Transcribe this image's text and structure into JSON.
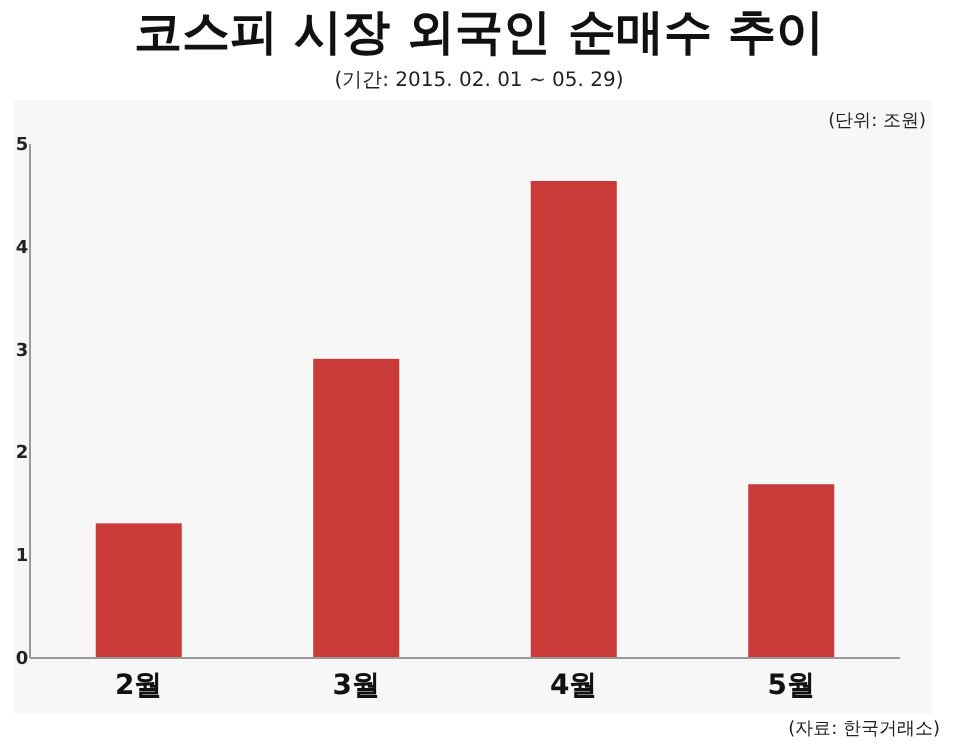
{
  "chart_data": {
    "type": "bar",
    "title": "코스피 시장 외국인 순매수 추이",
    "subtitle": "(기간: 2015. 02. 01 ~ 05. 29)",
    "categories": [
      "2월",
      "3월",
      "4월",
      "5월"
    ],
    "values": [
      1.31,
      2.91,
      4.64,
      1.69
    ],
    "color": "#c93a38",
    "ylim": [
      0,
      5
    ],
    "yticks": [
      0,
      1,
      2,
      3,
      4,
      5
    ],
    "grid": false,
    "annotations": [
      "(단위: 조원)",
      "(자료: 한국거래소)"
    ]
  }
}
